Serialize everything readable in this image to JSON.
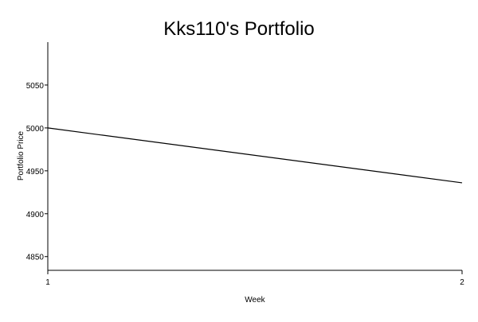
{
  "chart_data": {
    "type": "line",
    "title": "Kks110's Portfolio",
    "xlabel": "Week",
    "ylabel": "Portfolio Price",
    "x": [
      1,
      2
    ],
    "x_ticks": [
      "1",
      "2"
    ],
    "y_ticks": [
      "4850",
      "4900",
      "4950",
      "5000",
      "5050"
    ],
    "y_tick_values": [
      4850,
      4900,
      4950,
      5000,
      5050
    ],
    "xlim": [
      1,
      2
    ],
    "ylim": [
      4834,
      5100
    ],
    "grid": false,
    "series": [
      {
        "values": [
          5000,
          4936
        ]
      }
    ],
    "line_color": "#000000"
  }
}
